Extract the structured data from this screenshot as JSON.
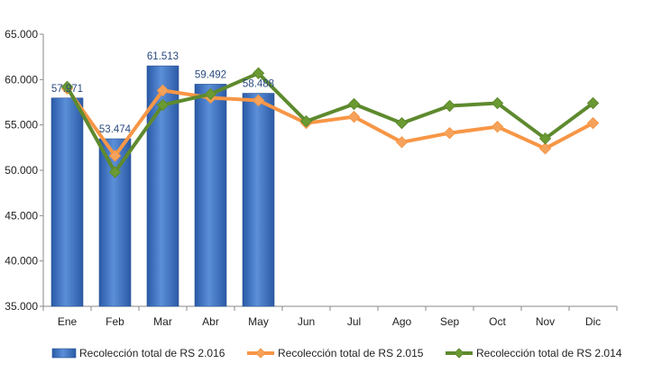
{
  "chart_data": {
    "type": "bar",
    "categories": [
      "Ene",
      "Feb",
      "Mar",
      "Abr",
      "May",
      "Jun",
      "Jul",
      "Ago",
      "Sep",
      "Oct",
      "Nov",
      "Dic"
    ],
    "ylim": [
      35000,
      65000
    ],
    "yticks": [
      "35.000",
      "40.000",
      "45.000",
      "50.000",
      "55.000",
      "60.000",
      "65.000"
    ],
    "ytick_values": [
      35000,
      40000,
      45000,
      50000,
      55000,
      60000,
      65000
    ],
    "grid": false,
    "legend_position": "bottom",
    "series": [
      {
        "name": "Recolección total de RS 2.016",
        "type": "bar",
        "color": "#3a6fc1",
        "values": [
          57971,
          53474,
          61513,
          59492,
          58488,
          null,
          null,
          null,
          null,
          null,
          null,
          null
        ],
        "labels": [
          "57.971",
          "53.474",
          "61.513",
          "59.492",
          "58.488"
        ]
      },
      {
        "name": "Recolección total de RS 2.015",
        "type": "line",
        "color": "#f79646",
        "marker_color": "#f5a35c",
        "values": [
          59000,
          51600,
          58800,
          58000,
          57700,
          55200,
          55900,
          53100,
          54100,
          54800,
          52400,
          55200
        ]
      },
      {
        "name": "Recolección total de RS 2.014",
        "type": "line",
        "color": "#5e8a2e",
        "marker_color": "#6b9a33",
        "values": [
          59200,
          49800,
          57200,
          58400,
          60700,
          55400,
          57300,
          55200,
          57100,
          57400,
          53500,
          57400
        ]
      }
    ]
  }
}
